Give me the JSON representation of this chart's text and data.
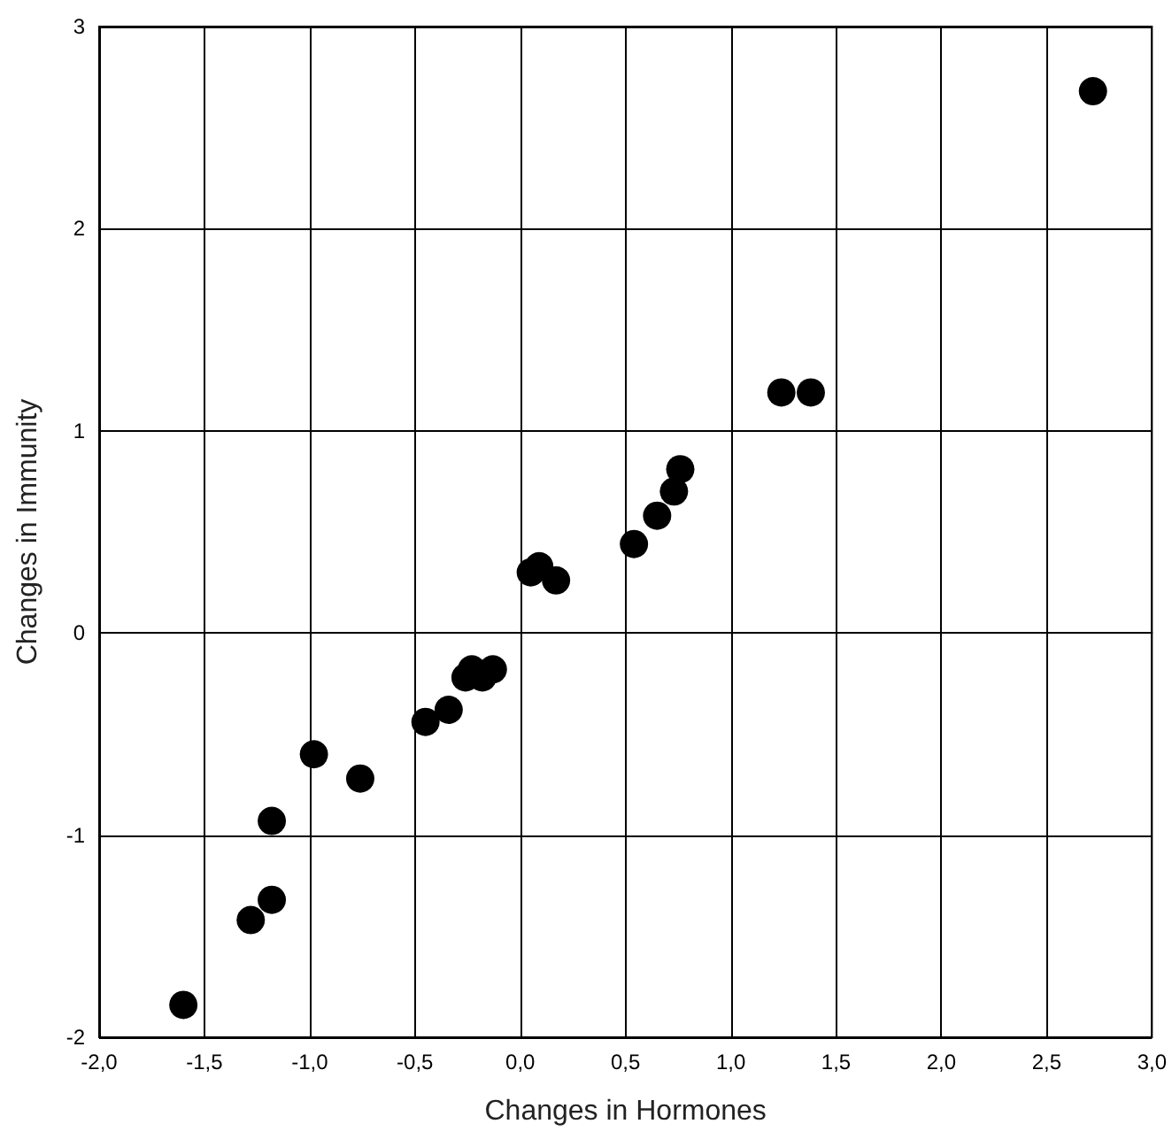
{
  "chart_data": {
    "type": "scatter",
    "xlabel": "Changes in Hormones",
    "ylabel": "Changes in Immunity",
    "x": [
      -1.6,
      -1.28,
      -1.18,
      -1.18,
      -0.98,
      -0.76,
      -0.45,
      -0.34,
      -0.26,
      -0.23,
      -0.18,
      -0.13,
      0.05,
      0.09,
      0.17,
      0.54,
      0.65,
      0.73,
      0.76,
      1.24,
      1.38,
      2.72
    ],
    "series": [
      {
        "color": "#000000",
        "values": [
          -1.84,
          -1.42,
          -1.32,
          -0.93,
          -0.6,
          -0.72,
          -0.44,
          -0.38,
          -0.22,
          -0.18,
          -0.22,
          -0.18,
          0.3,
          0.33,
          0.26,
          0.44,
          0.58,
          0.7,
          0.81,
          1.19,
          1.19,
          2.68
        ]
      }
    ],
    "xlim": [
      -2,
      3
    ],
    "ylim": [
      -2,
      3
    ],
    "xticks": [
      {
        "value": -2,
        "label": "-2,0"
      },
      {
        "value": -1.5,
        "label": "-1,5"
      },
      {
        "value": -1,
        "label": "-1,0"
      },
      {
        "value": -0.5,
        "label": "-0,5"
      },
      {
        "value": 0,
        "label": "0,0"
      },
      {
        "value": 0.5,
        "label": "0,5"
      },
      {
        "value": 1,
        "label": "1,0"
      },
      {
        "value": 1.5,
        "label": "1,5"
      },
      {
        "value": 2,
        "label": "2,0"
      },
      {
        "value": 2.5,
        "label": "2,5"
      },
      {
        "value": 3,
        "label": "3,0"
      }
    ],
    "yticks": [
      -2,
      -1,
      0,
      1,
      2,
      3
    ],
    "grid": true,
    "marker": "circle"
  }
}
